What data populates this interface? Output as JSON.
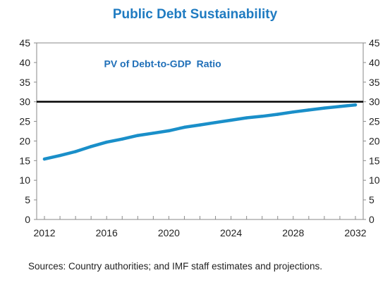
{
  "chart_data": {
    "type": "line",
    "title": "Public Debt Sustainability",
    "xlabel": "",
    "ylabel": "",
    "x": [
      2012,
      2013,
      2014,
      2015,
      2016,
      2017,
      2018,
      2019,
      2020,
      2021,
      2022,
      2023,
      2024,
      2025,
      2026,
      2027,
      2028,
      2029,
      2030,
      2031,
      2032
    ],
    "series": [
      {
        "name": "",
        "color": "#1a8fc9",
        "values": [
          15.4,
          16.3,
          17.3,
          18.6,
          19.7,
          20.5,
          21.4,
          22.0,
          22.6,
          23.5,
          24.1,
          24.7,
          25.3,
          25.9,
          26.3,
          26.8,
          27.4,
          27.9,
          28.4,
          28.8,
          29.2
        ]
      }
    ],
    "threshold": {
      "value": 30,
      "color": "#000000"
    },
    "annotation": {
      "text": "PV of Debt-to-GDP  Ratio",
      "color": "#1f6fb8"
    },
    "xlim": [
      2011.5,
      2032.5
    ],
    "ylim": [
      0,
      45
    ],
    "y_ticks": [
      0,
      5,
      10,
      15,
      20,
      25,
      30,
      35,
      40,
      45
    ],
    "x_tick_labels": [
      2012,
      2016,
      2020,
      2024,
      2028,
      2032
    ],
    "x_minor_ticks": [
      2012,
      2013,
      2014,
      2015,
      2016,
      2017,
      2018,
      2019,
      2020,
      2021,
      2022,
      2023,
      2024,
      2025,
      2026,
      2027,
      2028,
      2029,
      2030,
      2031,
      2032
    ],
    "secondary_y_axis": true,
    "grid": false,
    "legend": "none",
    "title_color": "#1f7bc1"
  },
  "source_note": "Sources: Country authorities; and IMF staff estimates  and projections."
}
